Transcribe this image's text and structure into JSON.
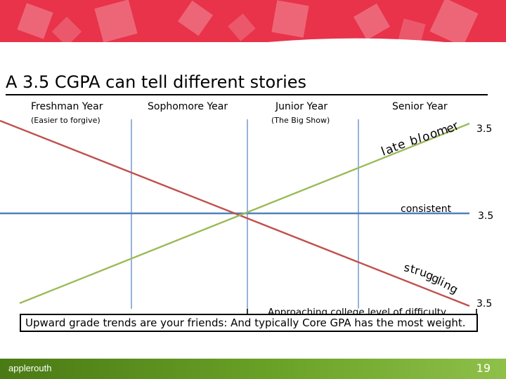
{
  "slide": {
    "title": "A 3.5 CGPA can tell different stories",
    "page_number": "19",
    "brand": "applerouth"
  },
  "columns": [
    {
      "heading": "Freshman Year",
      "sub": "(Easier to forgive)"
    },
    {
      "heading": "Sophomore Year",
      "sub": ""
    },
    {
      "heading": "Junior Year",
      "sub": "(The Big Show)"
    },
    {
      "heading": "Senior Year",
      "sub": ""
    }
  ],
  "trends": [
    {
      "label": "late bloomer",
      "end_value": "3.5",
      "color": "#9bbb59"
    },
    {
      "label": "consistent",
      "end_value": "3.5",
      "color": "#4f81bd"
    },
    {
      "label": "struggling",
      "end_value": "3.5",
      "color": "#c0504d"
    }
  ],
  "bracket_label": "Approaching college level of difficulty",
  "footer_note": "Upward grade trends are your friends: And typically Core GPA has the most weight.",
  "colors": {
    "banner": "#e8334a",
    "green_bar": "#6aa227"
  }
}
